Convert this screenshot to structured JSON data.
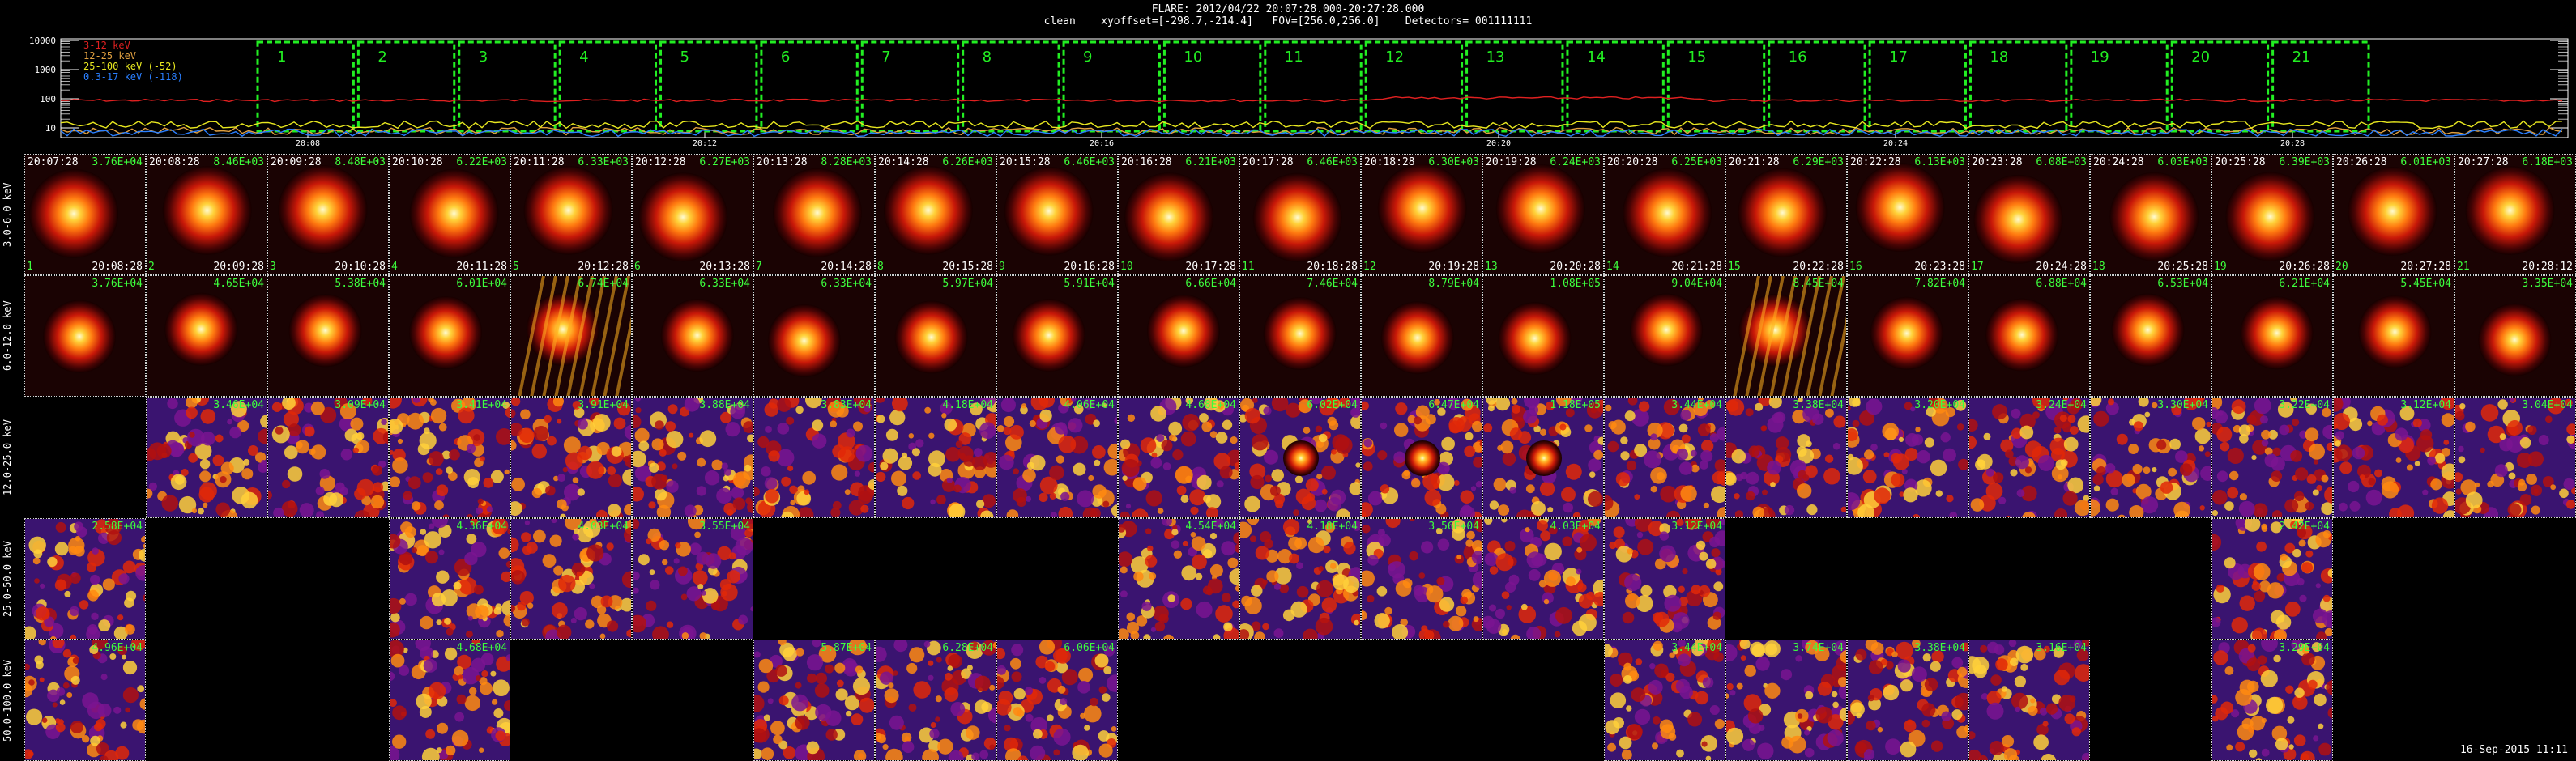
{
  "header": {
    "line1": "FLARE: 2012/04/22 20:07:28.000-20:27:28.000",
    "line2": "clean    xyoffset=[-298.7,-214.4]   FOV=[256.0,256.0]    Detectors= 001111111"
  },
  "lightcurve": {
    "y_ticks": [
      "10000",
      "1000",
      "100",
      "10"
    ],
    "x_ticks": [
      "20:08",
      "20:12",
      "20:16",
      "20:20",
      "20:24",
      "20:28"
    ],
    "legend": [
      {
        "text": "3-12 keV",
        "color": "#e02020"
      },
      {
        "text": "12-25 keV",
        "color": "#e0a040"
      },
      {
        "text": "25-100 keV (-52)",
        "color": "#e8e820"
      },
      {
        "text": "0.3-17 keV (-118)",
        "color": "#2a7fff"
      }
    ],
    "intervals": [
      "1",
      "2",
      "3",
      "4",
      "5",
      "6",
      "7",
      "8",
      "9",
      "10",
      "11",
      "12",
      "13",
      "14",
      "15",
      "16",
      "17",
      "18",
      "19",
      "20",
      "21"
    ],
    "interval_color": "#22ee22"
  },
  "rows": [
    {
      "label": "3.0-6.0 keV"
    },
    {
      "label": "6.0-12.0 keV"
    },
    {
      "label": "12.0-25.0 keV"
    },
    {
      "label": "25.0-50.0 keV"
    },
    {
      "label": "50.0-100.0 keV"
    }
  ],
  "columns": [
    {
      "start": "20:07:28",
      "end": "20:08:28"
    },
    {
      "start": "20:08:28",
      "end": "20:09:28"
    },
    {
      "start": "20:09:28",
      "end": "20:10:28"
    },
    {
      "start": "20:10:28",
      "end": "20:11:28"
    },
    {
      "start": "20:11:28",
      "end": "20:12:28"
    },
    {
      "start": "20:12:28",
      "end": "20:13:28"
    },
    {
      "start": "20:13:28",
      "end": "20:14:28"
    },
    {
      "start": "20:14:28",
      "end": "20:15:28"
    },
    {
      "start": "20:15:28",
      "end": "20:16:28"
    },
    {
      "start": "20:16:28",
      "end": "20:17:28"
    },
    {
      "start": "20:17:28",
      "end": "20:18:28"
    },
    {
      "start": "20:18:28",
      "end": "20:19:28"
    },
    {
      "start": "20:19:28",
      "end": "20:20:28"
    },
    {
      "start": "20:20:28",
      "end": "20:21:28"
    },
    {
      "start": "20:21:28",
      "end": "20:22:28"
    },
    {
      "start": "20:22:28",
      "end": "20:23:28"
    },
    {
      "start": "20:23:28",
      "end": "20:24:28"
    },
    {
      "start": "20:24:28",
      "end": "20:25:28"
    },
    {
      "start": "20:25:28",
      "end": "20:26:28"
    },
    {
      "start": "20:26:28",
      "end": "20:27:28"
    },
    {
      "start": "20:27:28",
      "end": "20:28:12"
    }
  ],
  "counts": {
    "row1": [
      "3.76E+04",
      "8.46E+03",
      "8.48E+03",
      "6.22E+03",
      "6.33E+03",
      "6.27E+03",
      "8.28E+03",
      "6.26E+03",
      "6.46E+03",
      "6.21E+03",
      "6.46E+03",
      "6.30E+03",
      "6.24E+03",
      "6.25E+03",
      "6.29E+03",
      "6.13E+03",
      "6.08E+03",
      "6.03E+03",
      "6.39E+03",
      "6.01E+03",
      "6.18E+03"
    ],
    "row2": [
      "3.76E+04",
      "4.65E+04",
      "5.38E+04",
      "6.01E+04",
      "6.74E+04",
      "6.33E+04",
      "6.33E+04",
      "5.97E+04",
      "5.91E+04",
      "6.66E+04",
      "7.46E+04",
      "8.79E+04",
      "1.08E+05",
      "9.04E+04",
      "8.45E+04",
      "7.82E+04",
      "6.88E+04",
      "6.53E+04",
      "6.21E+04",
      "5.45E+04",
      "3.35E+04"
    ],
    "row3": [
      "",
      "3.46E+04",
      "3.09E+04",
      "3.41E+04",
      "3.91E+04",
      "3.88E+04",
      "3.83E+04",
      "4.18E+04",
      "4.06E+04",
      "4.68E+04",
      "6.02E+04",
      "6.47E+04",
      "1.18E+05",
      "3.44E+04",
      "3.38E+04",
      "3.20E+04",
      "3.24E+04",
      "3.30E+04",
      "3.22E+04",
      "3.12E+04",
      "3.04E+04"
    ],
    "row4": [
      "2.58E+04",
      "",
      "",
      "4.36E+04",
      "4.03E+04",
      "3.55E+04",
      "",
      "",
      "",
      "4.54E+04",
      "4.18E+04",
      "3.56E+04",
      "4.03E+04",
      "3.12E+04",
      "",
      "",
      "",
      "",
      "2.42E+04",
      "",
      ""
    ],
    "row5": [
      "4.96E+04",
      "",
      "",
      "4.68E+04",
      "",
      "",
      "5.87E+04",
      "6.28E+04",
      "6.06E+04",
      "",
      "",
      "",
      "",
      "3.44E+04",
      "3.74E+04",
      "3.38E+04",
      "3.16E+04",
      "",
      "3.29E+04",
      "",
      ""
    ]
  },
  "presence": {
    "row1": [
      1,
      1,
      1,
      1,
      1,
      1,
      1,
      1,
      1,
      1,
      1,
      1,
      1,
      1,
      1,
      1,
      1,
      1,
      1,
      1,
      1
    ],
    "row2": [
      1,
      1,
      1,
      1,
      1,
      1,
      1,
      1,
      1,
      1,
      1,
      1,
      1,
      1,
      1,
      1,
      1,
      1,
      1,
      1,
      1
    ],
    "row3": [
      0,
      1,
      1,
      1,
      1,
      1,
      1,
      1,
      1,
      1,
      1,
      1,
      1,
      1,
      1,
      1,
      1,
      1,
      1,
      1,
      1
    ],
    "row4": [
      1,
      0,
      0,
      1,
      1,
      1,
      0,
      0,
      0,
      1,
      1,
      1,
      1,
      1,
      0,
      0,
      0,
      0,
      1,
      0,
      0
    ],
    "row5": [
      1,
      0,
      0,
      1,
      0,
      0,
      1,
      1,
      1,
      0,
      0,
      0,
      0,
      1,
      1,
      1,
      1,
      0,
      1,
      0,
      0
    ]
  },
  "timestamp": "16-Sep-2015 11:11"
}
